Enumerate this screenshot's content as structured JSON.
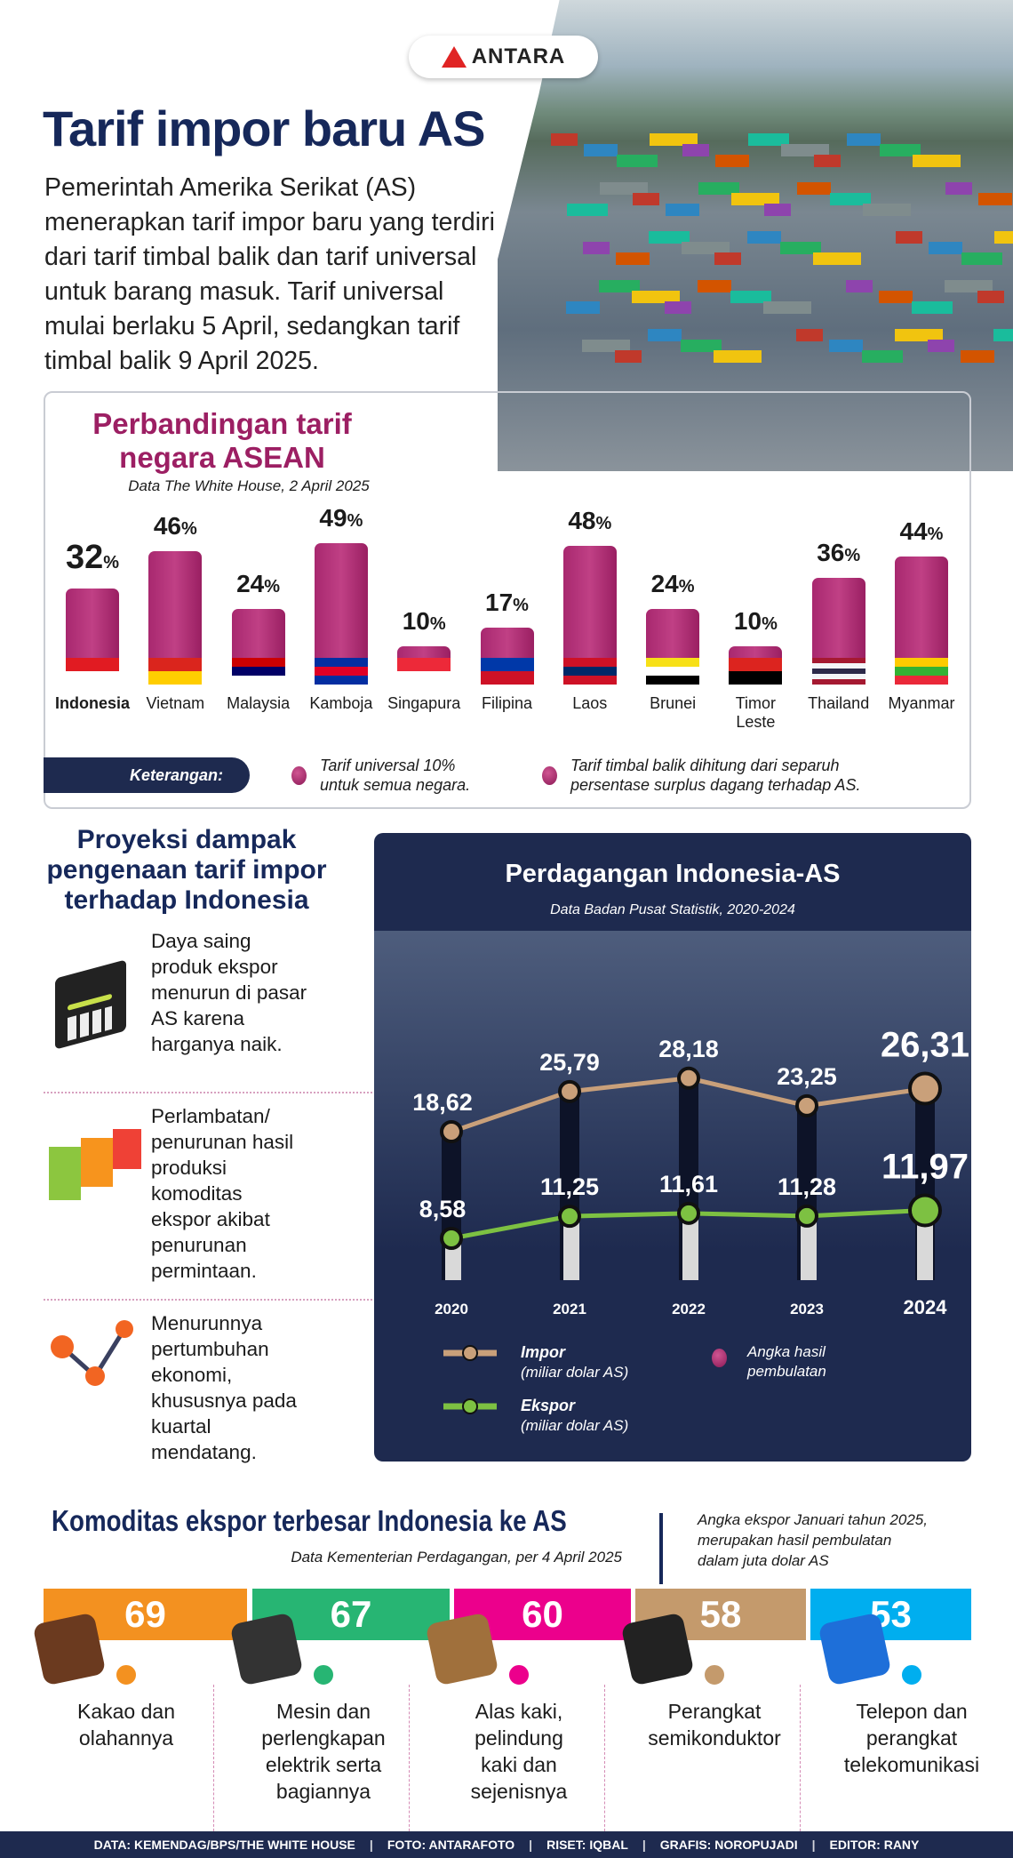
{
  "header": {
    "logo": "ANTARA",
    "title": "Tarif impor baru AS",
    "intro": [
      "Pemerintah Amerika Serikat (AS)",
      "menerapkan tarif impor baru yang terdiri",
      "dari tarif timbal balik dan tarif universal",
      "untuk barang masuk. Tarif universal",
      "mulai berlaku 5 April, sedangkan tarif",
      "timbal balik 9 April 2025."
    ]
  },
  "asean": {
    "title_lines": [
      "Perbandingan tarif",
      "negara ASEAN"
    ],
    "source": "Data The White House, 2 April 2025",
    "legend_label": "Keterangan:",
    "legend": [
      [
        "Tarif universal 10%",
        "untuk semua negara."
      ],
      [
        "Tarif timbal balik dihitung dari separuh",
        "persentase surplus dagang terhadap AS."
      ]
    ],
    "accent": "#9c1f63"
  },
  "chart_data": [
    {
      "type": "bar",
      "title": "Perbandingan tarif negara ASEAN",
      "subtitle": "Data The White House, 2 April 2025",
      "unit": "%",
      "categories": [
        "Indonesia",
        "Vietnam",
        "Malaysia",
        "Kamboja",
        "Singapura",
        "Filipina",
        "Laos",
        "Brunei",
        "Timor Leste",
        "Thailand",
        "Myanmar"
      ],
      "values": [
        32,
        46,
        24,
        49,
        10,
        17,
        48,
        24,
        10,
        36,
        44
      ],
      "highlight": "Indonesia",
      "color": "#a8286f",
      "flag_colors": [
        [
          "#e11b22",
          "#ffffff"
        ],
        [
          "#da251d",
          "#ffcd00"
        ],
        [
          "#cc0001",
          "#010066",
          "#ffffff"
        ],
        [
          "#032ea1",
          "#e00025",
          "#032ea1"
        ],
        [
          "#ed2939",
          "#ffffff"
        ],
        [
          "#0038a8",
          "#ce1126"
        ],
        [
          "#ce1126",
          "#002868",
          "#ce1126"
        ],
        [
          "#f7e017",
          "#ffffff",
          "#000000"
        ],
        [
          "#dc241f",
          "#000000"
        ],
        [
          "#a51931",
          "#f4f5f8",
          "#2d2a4a",
          "#f4f5f8",
          "#a51931"
        ],
        [
          "#fecb00",
          "#34b233",
          "#ea2839"
        ]
      ]
    },
    {
      "type": "line",
      "title": "Perdagangan Indonesia-AS",
      "subtitle": "Data Badan Pusat Statistik, 2020-2024",
      "x": [
        "2020",
        "2021",
        "2022",
        "2023",
        "2024"
      ],
      "series": [
        {
          "name": "Impor",
          "unit": "(miliar dolar AS)",
          "values": [
            "18,62",
            "25,79",
            "28,18",
            "23,25",
            "26,31"
          ],
          "color": "#c9a07a"
        },
        {
          "name": "Ekspor",
          "unit": "(miliar dolar AS)",
          "values": [
            "8,58",
            "11,25",
            "11,61",
            "11,28",
            "11,97"
          ],
          "color": "#7dc142"
        }
      ],
      "legend_note": [
        "Angka hasil",
        "pembulatan"
      ]
    },
    {
      "type": "bar",
      "title": "Komoditas ekspor terbesar Indonesia ke AS",
      "subtitle": "Data Kementerian Perdagangan, per 4 April 2025",
      "note": [
        "Angka ekspor Januari tahun 2025,",
        "merupakan hasil pembulatan",
        "dalam juta dolar AS"
      ],
      "categories": [
        "Kakao dan olahannya",
        "Mesin dan perlengkapan elektrik serta bagiannya",
        "Alas kaki, pelindung kaki dan sejenisnya",
        "Perangkat semikonduktor",
        "Telepon dan perangkat telekomunikasi"
      ],
      "values": [
        69,
        67,
        60,
        58,
        53
      ],
      "colors": [
        "#f39120",
        "#27b573",
        "#ec008c",
        "#c49a6c",
        "#00aeef"
      ]
    }
  ],
  "proyeksi": {
    "title_lines": [
      "Proyeksi dampak",
      "pengenaan tarif impor",
      "terhadap Indonesia"
    ],
    "items": [
      {
        "icon": "bar-chart-down-icon",
        "lines": [
          "Daya saing",
          "produk ekspor",
          "menurun di pasar",
          "AS karena",
          "harganya naik."
        ]
      },
      {
        "icon": "cubes-icon",
        "lines": [
          "Perlambatan/",
          "penurunan hasil",
          "produksi",
          "komoditas",
          "ekspor akibat",
          "penurunan",
          "permintaan."
        ]
      },
      {
        "icon": "line-graph-icon",
        "lines": [
          "Menurunnya",
          "pertumbuhan",
          "ekonomi,",
          "khususnya pada",
          "kuartal",
          "mendatang."
        ]
      }
    ]
  },
  "komoditas": {
    "labels": [
      [
        "Kakao dan",
        "olahannya"
      ],
      [
        "Mesin dan",
        "perlengkapan",
        "elektrik serta",
        "bagiannya"
      ],
      [
        "Alas kaki,",
        "pelindung",
        "kaki dan",
        "sejenisnya"
      ],
      [
        "Perangkat",
        "semikonduktor"
      ],
      [
        "Telepon dan",
        "perangkat",
        "telekomunikasi"
      ]
    ],
    "icons": [
      "cocoa-icon",
      "plug-icon",
      "shoes-icon",
      "chip-icon",
      "phone-icon"
    ]
  },
  "footer": [
    "DATA: KEMENDAG/BPS/THE WHITE HOUSE",
    "FOTO: ANTARAFOTO",
    "RISET: IQBAL",
    "GRAFIS: NOROPUJADI",
    "EDITOR: RANY"
  ]
}
